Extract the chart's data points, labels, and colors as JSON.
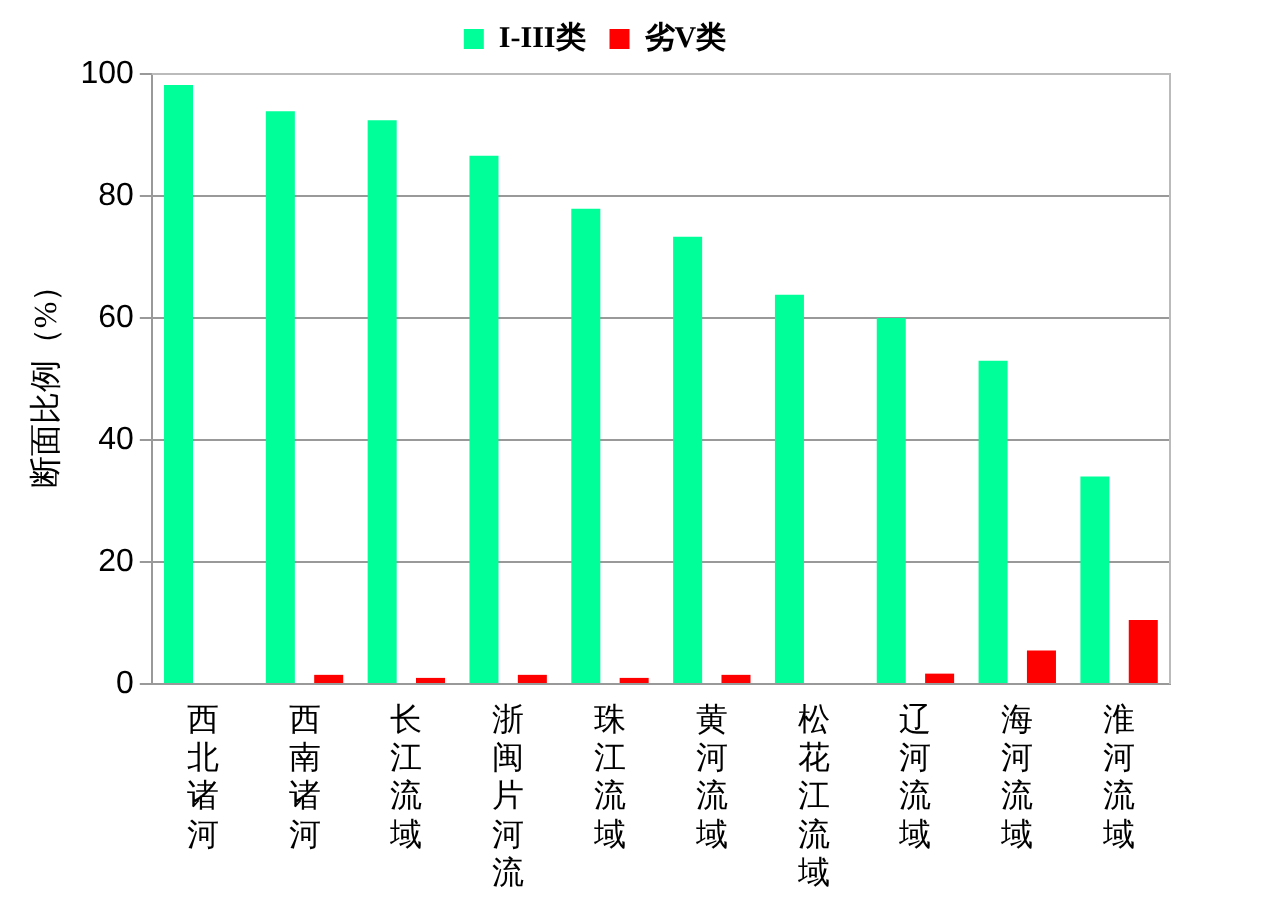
{
  "chart_data": {
    "type": "bar",
    "ylabel": "断面比例（%）",
    "categories": [
      "西北诸河",
      "西南诸河",
      "长江流域",
      "浙闽片河流",
      "珠江流域",
      "黄河流域",
      "松花江流域",
      "辽河流域",
      "海河流域",
      "淮河流域"
    ],
    "series": [
      {
        "name": "I-III类",
        "color": "#00ff99",
        "values": [
          98.2,
          93.9,
          92.4,
          86.6,
          77.9,
          73.3,
          63.8,
          60.0,
          53.0,
          34.0
        ]
      },
      {
        "name": "劣V类",
        "color": "#ff0000",
        "values": [
          0,
          1.5,
          1.0,
          1.5,
          1.0,
          1.5,
          0,
          1.7,
          5.5,
          10.5
        ]
      }
    ],
    "ylim": [
      0,
      100
    ],
    "yticks": [
      0,
      20,
      40,
      60,
      80,
      100
    ],
    "grid": "y",
    "legend": "top"
  }
}
